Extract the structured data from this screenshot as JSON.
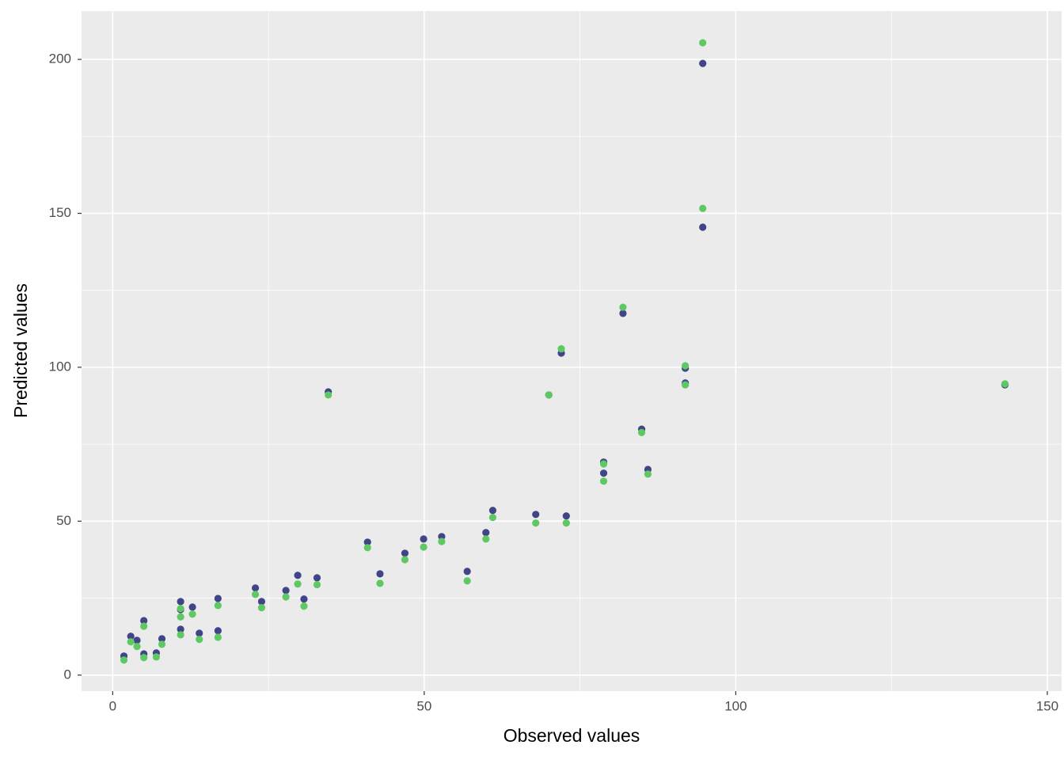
{
  "chart_data": {
    "type": "scatter",
    "x_label": "Observed values",
    "y_label": "Predicted values",
    "xlim": [
      -5,
      152.3
    ],
    "ylim": [
      -5.2,
      215.7
    ],
    "xticks": [
      0,
      50,
      100,
      150
    ],
    "yticks": [
      0,
      50,
      100,
      150,
      200
    ],
    "x_minor_ticks": [
      25,
      75,
      125
    ],
    "y_minor_ticks": [
      25,
      75,
      125,
      175
    ],
    "grid": true,
    "x": [
      1.8,
      2.9,
      3.9,
      5.0,
      5.0,
      7.0,
      7.9,
      10.9,
      10.9,
      10.9,
      12.8,
      13.9,
      16.9,
      16.9,
      22.9,
      23.9,
      27.8,
      29.7,
      30.7,
      32.8,
      34.6,
      40.9,
      42.9,
      46.9,
      49.9,
      52.8,
      56.9,
      59.9,
      61.0,
      67.9,
      70.0,
      72.0,
      72.8,
      78.8,
      78.8,
      81.9,
      84.9,
      85.9,
      91.9,
      91.9,
      94.7,
      94.7,
      143.2
    ],
    "series": [
      {
        "color": "#414487",
        "values": [
          6.2,
          12.6,
          11.3,
          17.7,
          6.9,
          7.2,
          11.8,
          23.9,
          21.3,
          14.9,
          22.1,
          13.6,
          24.9,
          14.4,
          28.3,
          23.9,
          27.5,
          32.4,
          24.7,
          31.6,
          92.0,
          43.2,
          32.9,
          39.6,
          44.2,
          45.0,
          33.7,
          46.3,
          53.5,
          52.2,
          91.0,
          104.6,
          51.7,
          69.2,
          65.6,
          117.5,
          79.9,
          66.8,
          99.7,
          94.9,
          198.7,
          145.5,
          94.3
        ]
      },
      {
        "color": "#5ec962",
        "values": [
          4.9,
          10.8,
          9.3,
          15.9,
          5.7,
          5.9,
          10.0,
          21.6,
          18.9,
          13.1,
          19.8,
          11.6,
          22.6,
          12.3,
          26.2,
          21.9,
          25.4,
          29.6,
          22.4,
          29.4,
          91.0,
          41.4,
          29.8,
          37.5,
          41.6,
          43.4,
          30.6,
          44.2,
          51.2,
          49.4,
          91.0,
          106.0,
          49.4,
          68.6,
          63.0,
          119.5,
          78.8,
          65.3,
          100.5,
          94.3,
          205.4,
          151.6,
          94.6
        ]
      }
    ]
  }
}
